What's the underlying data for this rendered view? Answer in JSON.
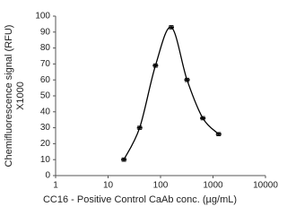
{
  "chart_data": {
    "type": "scatter",
    "line": "smooth",
    "color": "#000000",
    "x": [
      20,
      40,
      80,
      160,
      320,
      640,
      1280
    ],
    "values": [
      10,
      30,
      69,
      93,
      60,
      36,
      26
    ],
    "errors": [
      1,
      1,
      1,
      1,
      1,
      1,
      1
    ],
    "xlabel": "CC16 - Positive Control CaAb conc. (µg/mL)",
    "ylabel": [
      "Chemifluorescence signal (RFU)",
      "X1000"
    ],
    "xscale": "log",
    "xlim": [
      1,
      10000
    ],
    "xticks": [
      1,
      10,
      100,
      1000,
      10000
    ],
    "ylim": [
      0,
      100
    ],
    "yticks": [
      0,
      10,
      20,
      30,
      40,
      50,
      60,
      70,
      80,
      90,
      100
    ]
  }
}
